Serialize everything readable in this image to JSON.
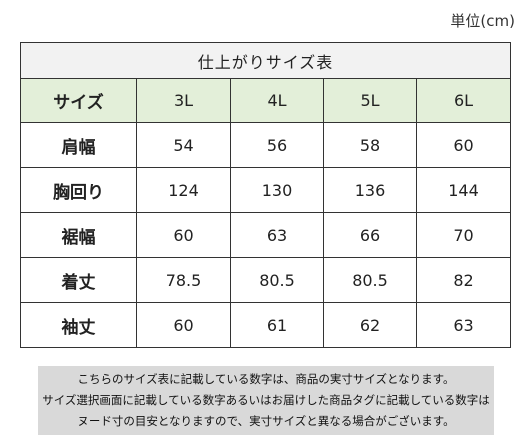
{
  "unit_label": "単位(cm)",
  "table": {
    "title": "仕上がりサイズ表",
    "header_label": "サイズ",
    "columns": [
      "3L",
      "4L",
      "5L",
      "6L"
    ],
    "rows": [
      {
        "label": "肩幅",
        "values": [
          "54",
          "56",
          "58",
          "60"
        ]
      },
      {
        "label": "胸回り",
        "values": [
          "124",
          "130",
          "136",
          "144"
        ]
      },
      {
        "label": "裾幅",
        "values": [
          "60",
          "63",
          "66",
          "70"
        ]
      },
      {
        "label": "着丈",
        "values": [
          "78.5",
          "80.5",
          "80.5",
          "82"
        ]
      },
      {
        "label": "袖丈",
        "values": [
          "60",
          "61",
          "62",
          "63"
        ]
      }
    ]
  },
  "notes": [
    "こちらのサイズ表に記載している数字は、商品の実寸サイズとなります。",
    "サイズ選択画面に記載している数字あるいはお届けした商品タグに記載している数字は",
    "ヌード寸の目安となりますので、実寸サイズと異なる場合がございます。"
  ],
  "colors": {
    "header_bg": "#e3efd9",
    "title_bg": "#f2f2f2",
    "note_bg": "#d9d9d9"
  }
}
